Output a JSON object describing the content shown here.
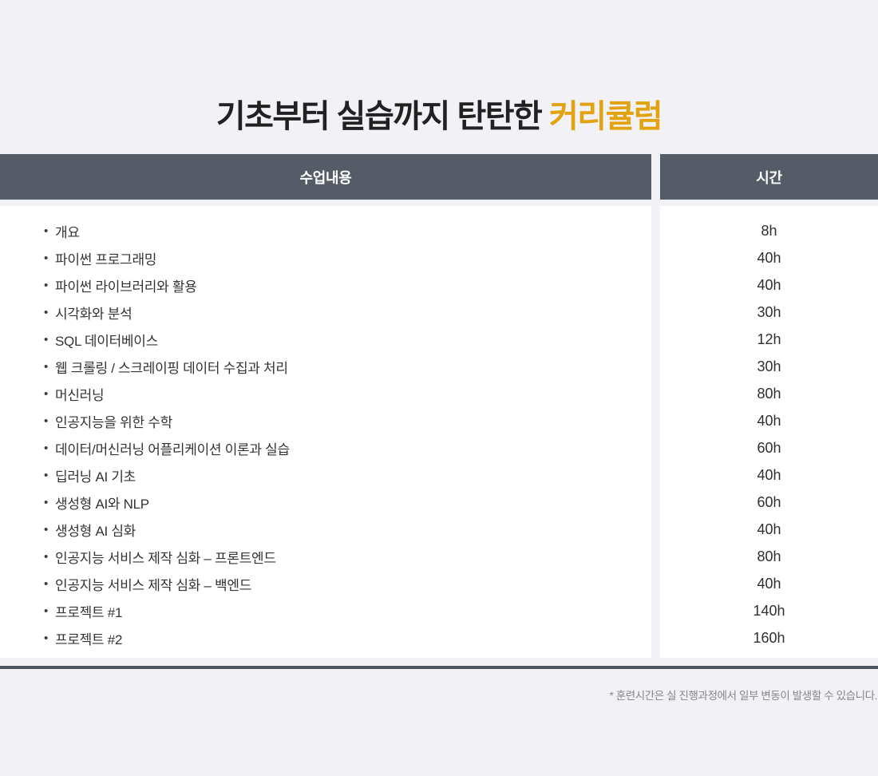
{
  "page": {
    "background_color": "#F1F1F6"
  },
  "title": {
    "prefix": "기초부터 실습까지 탄탄한 ",
    "highlight": "커리큘럼",
    "text_color": "#212121",
    "highlight_color": "#E2A313"
  },
  "table": {
    "bullet_glyph": "•",
    "header": {
      "content_label": "수업내용",
      "hours_label": "시간",
      "background_color": "#555C67",
      "text_color": "#FFFFFF"
    },
    "rows": [
      {
        "content": "개요",
        "hours": "8h"
      },
      {
        "content": "파이썬 프로그래밍",
        "hours": "40h"
      },
      {
        "content": "파이썬 라이브러리와 활용",
        "hours": "40h"
      },
      {
        "content": "시각화와 분석",
        "hours": "30h"
      },
      {
        "content": "SQL 데이터베이스",
        "hours": "12h"
      },
      {
        "content": "웹 크롤링 / 스크레이핑 데이터 수집과 처리",
        "hours": "30h"
      },
      {
        "content": "머신러닝",
        "hours": "80h"
      },
      {
        "content": "인공지능을 위한 수학",
        "hours": "40h"
      },
      {
        "content": "데이터/머신러닝 어플리케이션 이론과 실습",
        "hours": "60h"
      },
      {
        "content": "딥러닝 AI 기초",
        "hours": "40h"
      },
      {
        "content": "생성형 AI와 NLP",
        "hours": "60h"
      },
      {
        "content": "생성형 AI 심화",
        "hours": "40h"
      },
      {
        "content": "인공지능 서비스 제작 심화 – 프론트엔드",
        "hours": "80h"
      },
      {
        "content": "인공지능 서비스 제작 심화 – 백엔드",
        "hours": "40h"
      },
      {
        "content": "프로젝트 #1",
        "hours": "140h"
      },
      {
        "content": "프로젝트 #2",
        "hours": "160h"
      }
    ]
  },
  "divider_color": "#4D545E",
  "footnote": "* 훈련시간은 실 진행과정에서 일부 변동이 발생할 수 있습니다."
}
